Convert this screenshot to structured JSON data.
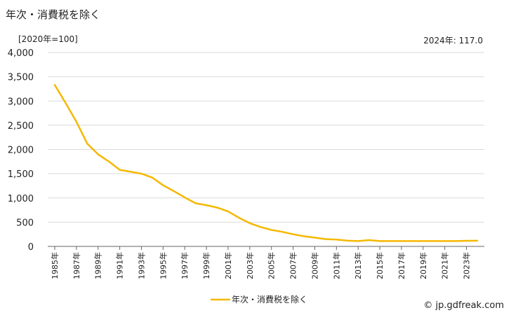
{
  "header": {
    "title": "年次・消費税を除く",
    "unit": "[2020年=100]",
    "latest": "2024年: 117.0"
  },
  "credit": "© jp.gdfreak.com",
  "colors": {
    "series": "#F5B800",
    "grid": "#d9d9d9",
    "axis": "#666666"
  },
  "chart_data": {
    "type": "line",
    "ylim": [
      0,
      4000
    ],
    "yticks": [
      0,
      500,
      1000,
      1500,
      2000,
      2500,
      3000,
      3500,
      4000
    ],
    "ytick_labels": [
      "0",
      "500",
      "1,000",
      "1,500",
      "2,000",
      "2,500",
      "3,000",
      "3,500",
      "4,000"
    ],
    "x": [
      1985,
      1986,
      1987,
      1988,
      1989,
      1990,
      1991,
      1992,
      1993,
      1994,
      1995,
      1996,
      1997,
      1998,
      1999,
      2000,
      2001,
      2002,
      2003,
      2004,
      2005,
      2006,
      2007,
      2008,
      2009,
      2010,
      2011,
      2012,
      2013,
      2014,
      2015,
      2016,
      2017,
      2018,
      2019,
      2020,
      2021,
      2022,
      2023,
      2024
    ],
    "xtick_labels": [
      "1985年",
      "1987年",
      "1989年",
      "1991年",
      "1993年",
      "1995年",
      "1997年",
      "1999年",
      "2001年",
      "2003年",
      "2005年",
      "2007年",
      "2009年",
      "2011年",
      "2013年",
      "2015年",
      "2017年",
      "2019年",
      "2021年",
      "2023年"
    ],
    "grid": true,
    "legend": "bottom-center",
    "series": [
      {
        "name": "年次・消費税を除く",
        "values": [
          3330,
          2960,
          2570,
          2120,
          1900,
          1750,
          1580,
          1540,
          1500,
          1420,
          1260,
          1140,
          1010,
          890,
          850,
          800,
          720,
          590,
          480,
          400,
          340,
          300,
          250,
          210,
          180,
          150,
          140,
          120,
          110,
          130,
          110,
          110,
          110,
          110,
          110,
          110,
          110,
          110,
          115,
          117
        ]
      }
    ]
  }
}
